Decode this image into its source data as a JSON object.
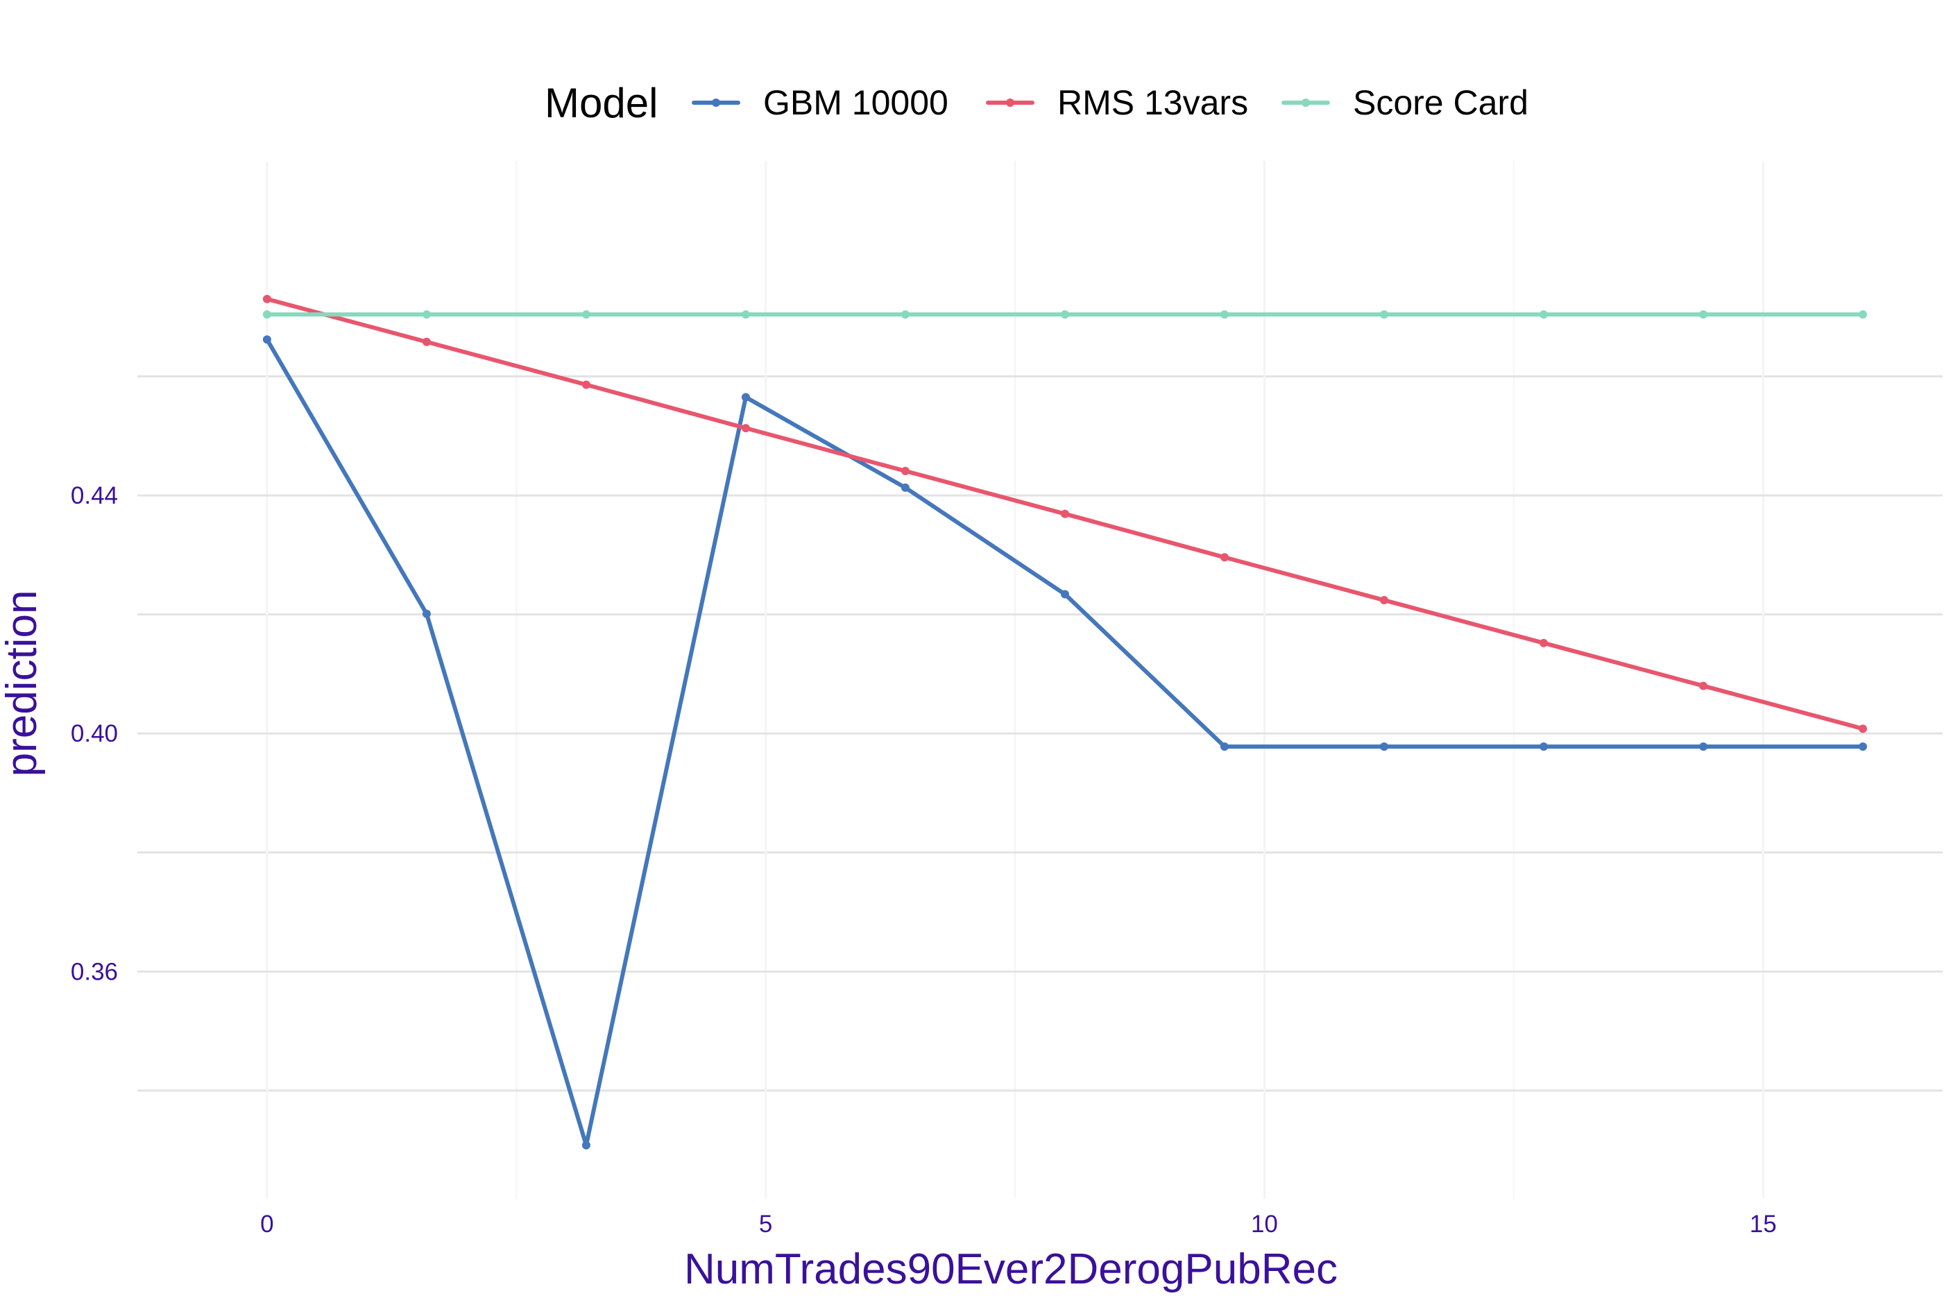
{
  "chart_data": {
    "type": "line",
    "title": "",
    "xlabel": "NumTrades90Ever2DerogPubRec",
    "ylabel": "prediction",
    "xlim": [
      -1.3,
      16.8
    ],
    "ylim": [
      0.3218,
      0.4962
    ],
    "x_ticks": [
      0,
      5,
      10,
      15
    ],
    "x_tick_labels": [
      "0",
      "5",
      "10",
      "15"
    ],
    "y_ticks": [
      0.36,
      0.4,
      0.44
    ],
    "y_tick_labels": [
      "0.36",
      "0.40",
      "0.44"
    ],
    "grid": true,
    "legend": {
      "title": "Model",
      "position": "top"
    },
    "x": [
      0,
      1.6,
      3.2,
      4.8,
      6.4,
      8.0,
      9.6,
      11.2,
      12.8,
      14.4,
      16.0
    ],
    "series": [
      {
        "name": "GBM 10000",
        "color": "#4477BB",
        "values": [
          0.4662,
          0.4201,
          0.3308,
          0.4565,
          0.4413,
          0.4234,
          0.3978,
          0.3978,
          0.3978,
          0.3978,
          0.3978
        ]
      },
      {
        "name": "RMS 13vars",
        "color": "#E8566E",
        "values": [
          0.473,
          0.4658,
          0.4586,
          0.4513,
          0.4441,
          0.4369,
          0.4296,
          0.4224,
          0.4152,
          0.408,
          0.4008
        ]
      },
      {
        "name": "Score Card",
        "color": "#88D8BE",
        "values": [
          0.4704,
          0.4704,
          0.4704,
          0.4704,
          0.4704,
          0.4704,
          0.4704,
          0.4704,
          0.4704,
          0.4704,
          0.4704
        ]
      }
    ],
    "colors": {
      "tick_text": "#3A119A",
      "axis_title_text": "#3A119A",
      "grid_major": "#E3E3E3",
      "grid_minor": "#F4F4F4"
    }
  }
}
